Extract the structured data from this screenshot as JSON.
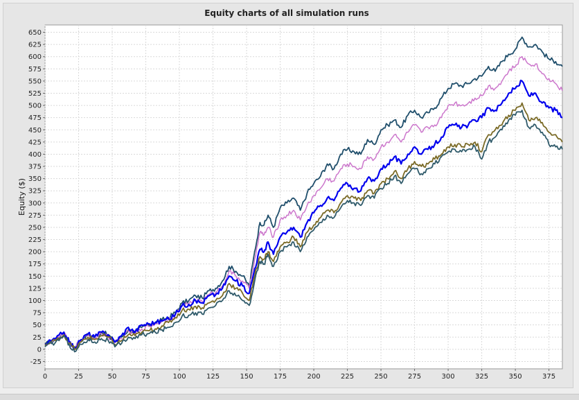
{
  "chart_data": {
    "type": "line",
    "title": "Equity charts of all simulation runs",
    "xlabel": "",
    "ylabel": "Equity ($)",
    "xlim": [
      0,
      385
    ],
    "ylim": [
      -40,
      665
    ],
    "xticks": [
      0,
      25,
      50,
      75,
      100,
      125,
      150,
      175,
      200,
      225,
      250,
      275,
      300,
      325,
      350,
      375
    ],
    "yticks": [
      -25,
      0,
      25,
      50,
      75,
      100,
      125,
      150,
      175,
      200,
      225,
      250,
      275,
      300,
      325,
      350,
      375,
      400,
      425,
      450,
      475,
      500,
      525,
      550,
      575,
      600,
      625,
      650
    ],
    "grid": true,
    "legend": "none",
    "series": [
      {
        "color": "#1f4e6b",
        "width": 1.8,
        "x": [
          0,
          8,
          14,
          18,
          22,
          27,
          32,
          37,
          42,
          47,
          52,
          57,
          62,
          67,
          72,
          77,
          82,
          87,
          92,
          97,
          102,
          107,
          112,
          117,
          122,
          127,
          132,
          137,
          142,
          147,
          152,
          156,
          160,
          163,
          166,
          170,
          175,
          180,
          185,
          190,
          195,
          200,
          205,
          210,
          215,
          220,
          225,
          230,
          235,
          240,
          245,
          250,
          255,
          260,
          265,
          270,
          275,
          280,
          285,
          290,
          295,
          300,
          305,
          310,
          315,
          320,
          325,
          330,
          335,
          340,
          345,
          350,
          355,
          360,
          365,
          370,
          375,
          380,
          385
        ],
        "y": [
          10,
          20,
          35,
          15,
          5,
          20,
          30,
          25,
          35,
          30,
          15,
          25,
          40,
          35,
          45,
          50,
          55,
          60,
          65,
          75,
          95,
          100,
          110,
          105,
          120,
          125,
          140,
          170,
          160,
          150,
          130,
          200,
          260,
          255,
          275,
          250,
          290,
          300,
          310,
          285,
          320,
          340,
          355,
          380,
          370,
          400,
          410,
          405,
          400,
          430,
          420,
          450,
          460,
          470,
          455,
          480,
          490,
          475,
          485,
          495,
          515,
          535,
          545,
          540,
          545,
          555,
          560,
          580,
          570,
          590,
          605,
          615,
          640,
          620,
          625,
          610,
          595,
          590,
          580
        ]
      },
      {
        "color": "#cc77cc",
        "width": 1.5,
        "x": [
          0,
          8,
          14,
          18,
          22,
          27,
          32,
          37,
          42,
          47,
          52,
          57,
          62,
          67,
          72,
          77,
          82,
          87,
          92,
          97,
          102,
          107,
          112,
          117,
          122,
          127,
          132,
          137,
          142,
          147,
          152,
          156,
          160,
          163,
          166,
          170,
          175,
          180,
          185,
          190,
          195,
          200,
          205,
          210,
          215,
          220,
          225,
          230,
          235,
          240,
          245,
          250,
          255,
          260,
          265,
          270,
          275,
          280,
          285,
          290,
          295,
          300,
          305,
          310,
          315,
          320,
          325,
          330,
          335,
          340,
          345,
          350,
          355,
          360,
          365,
          370,
          375,
          380,
          385
        ],
        "y": [
          10,
          20,
          33,
          14,
          4,
          18,
          28,
          23,
          32,
          27,
          13,
          22,
          37,
          32,
          42,
          47,
          52,
          57,
          62,
          70,
          88,
          93,
          102,
          98,
          112,
          117,
          130,
          160,
          150,
          140,
          125,
          185,
          240,
          235,
          250,
          230,
          265,
          275,
          285,
          265,
          295,
          315,
          330,
          350,
          345,
          370,
          380,
          375,
          370,
          395,
          390,
          415,
          425,
          440,
          425,
          445,
          460,
          445,
          455,
          460,
          475,
          500,
          505,
          500,
          505,
          515,
          520,
          540,
          535,
          550,
          570,
          580,
          600,
          585,
          585,
          565,
          555,
          545,
          530
        ]
      },
      {
        "color": "#0000ee",
        "width": 2.2,
        "x": [
          0,
          8,
          14,
          18,
          22,
          27,
          32,
          37,
          42,
          47,
          52,
          57,
          62,
          67,
          72,
          77,
          82,
          87,
          92,
          97,
          102,
          107,
          112,
          117,
          122,
          127,
          132,
          137,
          142,
          147,
          152,
          156,
          160,
          163,
          166,
          170,
          175,
          180,
          185,
          190,
          195,
          200,
          205,
          210,
          215,
          220,
          225,
          230,
          235,
          240,
          245,
          250,
          255,
          260,
          265,
          270,
          275,
          280,
          285,
          290,
          295,
          300,
          305,
          310,
          315,
          320,
          325,
          330,
          335,
          340,
          345,
          350,
          355,
          360,
          365,
          370,
          375,
          380,
          385
        ],
        "y": [
          10,
          22,
          35,
          15,
          3,
          20,
          32,
          25,
          35,
          30,
          15,
          28,
          45,
          35,
          50,
          52,
          55,
          58,
          62,
          72,
          90,
          92,
          100,
          95,
          110,
          112,
          125,
          150,
          140,
          130,
          115,
          165,
          205,
          200,
          220,
          195,
          230,
          240,
          250,
          230,
          260,
          280,
          295,
          310,
          305,
          330,
          340,
          330,
          325,
          350,
          345,
          370,
          380,
          395,
          380,
          400,
          415,
          400,
          410,
          420,
          435,
          455,
          460,
          455,
          460,
          470,
          475,
          495,
          490,
          505,
          525,
          535,
          550,
          520,
          525,
          505,
          495,
          490,
          475
        ]
      },
      {
        "color": "#7a6a26",
        "width": 1.8,
        "x": [
          0,
          8,
          14,
          18,
          22,
          27,
          32,
          37,
          42,
          47,
          52,
          57,
          62,
          67,
          72,
          77,
          82,
          87,
          92,
          97,
          102,
          107,
          112,
          117,
          122,
          127,
          132,
          137,
          142,
          147,
          152,
          156,
          160,
          163,
          166,
          170,
          175,
          180,
          185,
          190,
          195,
          200,
          205,
          210,
          215,
          220,
          225,
          230,
          235,
          240,
          245,
          250,
          255,
          260,
          265,
          270,
          275,
          280,
          285,
          290,
          295,
          300,
          305,
          310,
          315,
          320,
          325,
          330,
          335,
          340,
          345,
          350,
          355,
          360,
          365,
          370,
          375,
          380,
          385
        ],
        "y": [
          8,
          18,
          30,
          12,
          0,
          15,
          25,
          20,
          28,
          25,
          10,
          18,
          30,
          28,
          35,
          38,
          42,
          48,
          55,
          65,
          80,
          82,
          88,
          85,
          95,
          100,
          110,
          135,
          125,
          115,
          100,
          150,
          190,
          185,
          200,
          180,
          210,
          220,
          230,
          210,
          240,
          255,
          270,
          285,
          280,
          300,
          315,
          310,
          305,
          325,
          320,
          340,
          350,
          365,
          350,
          370,
          385,
          375,
          380,
          390,
          400,
          415,
          420,
          415,
          420,
          425,
          405,
          440,
          450,
          460,
          480,
          490,
          505,
          470,
          475,
          465,
          445,
          440,
          425
        ]
      },
      {
        "color": "#2f5a6a",
        "width": 1.8,
        "x": [
          0,
          8,
          14,
          18,
          22,
          27,
          32,
          37,
          42,
          47,
          52,
          57,
          62,
          67,
          72,
          77,
          82,
          87,
          92,
          97,
          102,
          107,
          112,
          117,
          122,
          127,
          132,
          137,
          142,
          147,
          152,
          156,
          160,
          163,
          166,
          170,
          175,
          180,
          185,
          190,
          195,
          200,
          205,
          210,
          215,
          220,
          225,
          230,
          235,
          240,
          245,
          250,
          255,
          260,
          265,
          270,
          275,
          280,
          285,
          290,
          295,
          300,
          305,
          310,
          315,
          320,
          325,
          330,
          335,
          340,
          345,
          350,
          355,
          360,
          365,
          370,
          375,
          380,
          385
        ],
        "y": [
          5,
          15,
          28,
          10,
          -5,
          10,
          20,
          15,
          22,
          18,
          5,
          12,
          25,
          22,
          30,
          32,
          35,
          40,
          45,
          55,
          68,
          70,
          75,
          72,
          85,
          90,
          100,
          120,
          110,
          100,
          90,
          140,
          180,
          175,
          195,
          170,
          200,
          210,
          220,
          200,
          230,
          245,
          260,
          275,
          270,
          290,
          305,
          300,
          295,
          315,
          310,
          330,
          340,
          355,
          340,
          360,
          370,
          360,
          370,
          380,
          395,
          405,
          410,
          405,
          410,
          415,
          390,
          425,
          435,
          450,
          470,
          480,
          490,
          455,
          460,
          445,
          420,
          415,
          410
        ]
      }
    ]
  }
}
